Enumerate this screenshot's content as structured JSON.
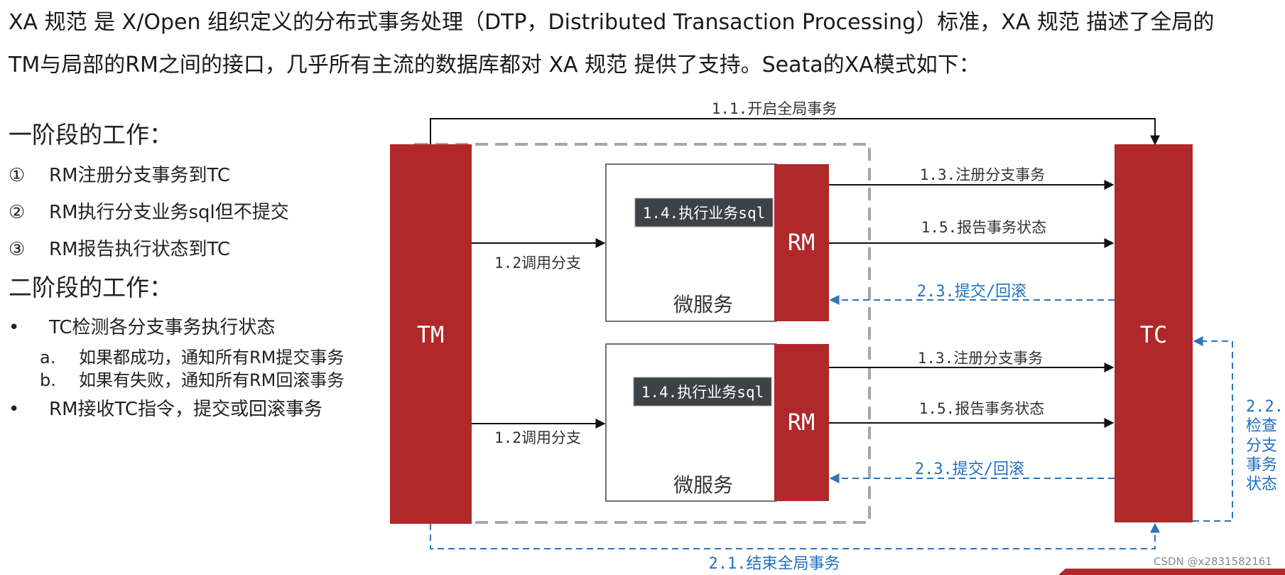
{
  "intro": {
    "line1": "XA 规范 是 X/Open 组织定义的分布式事务处理（DTP，Distributed Transaction Processing）标准，XA 规范 描述了全局的",
    "line2": "TM与局部的RM之间的接口，几乎所有主流的数据库都对 XA 规范 提供了支持。Seata的XA模式如下："
  },
  "phase1": {
    "title": "一阶段的工作：",
    "steps": [
      {
        "marker": "①",
        "text": "RM注册分支事务到TC"
      },
      {
        "marker": "②",
        "text": "RM执行分支业务sql但不提交"
      },
      {
        "marker": "③",
        "text": "RM报告执行状态到TC"
      }
    ]
  },
  "phase2": {
    "title": "二阶段的工作：",
    "bullet1": {
      "marker": "•",
      "text": "TC检测各分支事务执行状态"
    },
    "subs": [
      {
        "marker": "a.",
        "text": "如果都成功，通知所有RM提交事务"
      },
      {
        "marker": "b.",
        "text": "如果有失败，通知所有RM回滚事务"
      }
    ],
    "bullet2": {
      "marker": "•",
      "text": "RM接收TC指令，提交或回滚事务"
    }
  },
  "diagram": {
    "tm_label": "TM",
    "tc_label": "TC",
    "rm_label": "RM",
    "service_label": "微服务",
    "exec_sql_label": "1.4.执行业务sql",
    "call_branch_label": "1.2调用分支",
    "register_branch_label": "1.3.注册分支事务",
    "report_status_label": "1.5.报告事务状态",
    "commit_rollback_label": "2.3.提交/回滚",
    "begin_global_label": "1.1.开启全局事务",
    "end_global_label": "2.1.结束全局事务",
    "check_status_label_lines": [
      "2.2.",
      "检查",
      "分支",
      "事务",
      "状态"
    ],
    "colors": {
      "block_red": "#b0282a",
      "sql_box": "#3c4245",
      "blue_dashed": "#2e75b6",
      "blue_text": "#1f6fc2",
      "gray_dashed": "#a6a6a6",
      "arrow_black": "#111111"
    }
  },
  "watermark": "CSDN @x2831582161"
}
